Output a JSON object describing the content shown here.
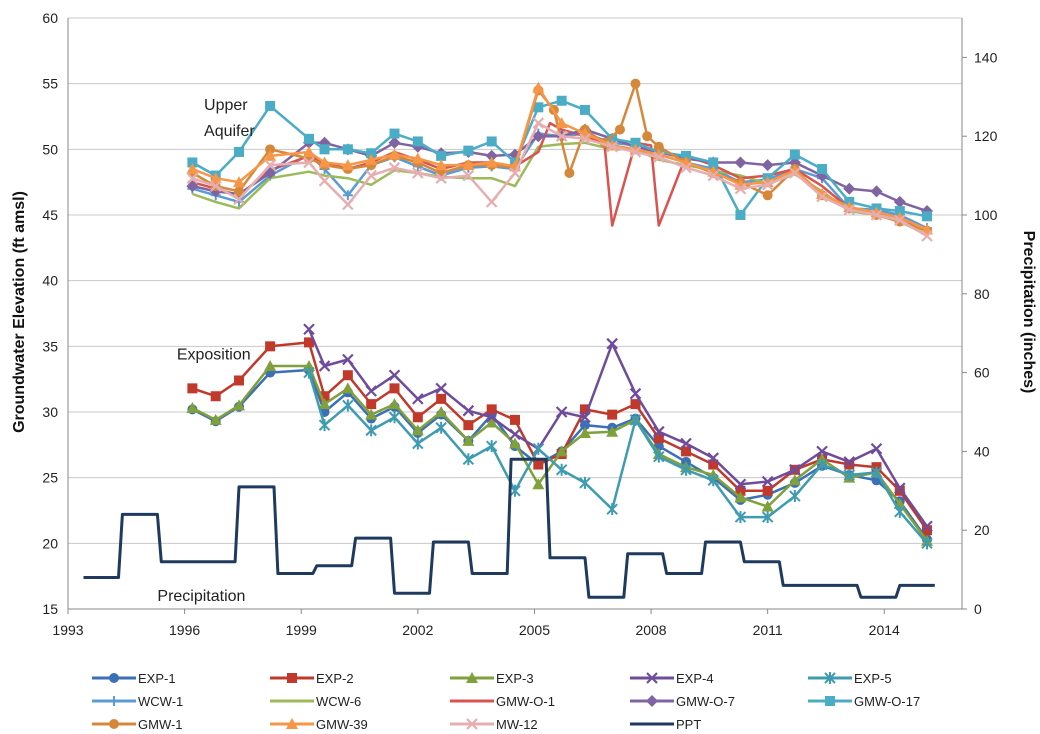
{
  "chart_data": {
    "type": "line",
    "xlabel": "",
    "ylabel": "Groundwater Elevation (ft amsl)",
    "y2label": "Precipitation (inches)",
    "xlim": [
      1993,
      2016
    ],
    "ylim": [
      15,
      60
    ],
    "y2lim": [
      0,
      150
    ],
    "x_ticks": [
      1993,
      1996,
      1999,
      2002,
      2005,
      2008,
      2011,
      2014
    ],
    "y_ticks": [
      15,
      20,
      25,
      30,
      35,
      40,
      45,
      50,
      55,
      60
    ],
    "y2_ticks": [
      0,
      20,
      40,
      60,
      80,
      100,
      120,
      140
    ],
    "grid": "horizontal",
    "legend_position": "bottom",
    "annotations": [
      {
        "text": "Upper",
        "x": 1996.5,
        "y": 53
      },
      {
        "text": "Aquifer",
        "x": 1996.5,
        "y": 51
      },
      {
        "text": "Exposition",
        "x": 1995.8,
        "y": 34
      },
      {
        "text": "Precipitation",
        "x": 1995.3,
        "y": 15.6
      }
    ],
    "series": [
      {
        "name": "EXP-1",
        "color": "#3B6FB6",
        "marker": "circle",
        "x": [
          1996.2,
          1996.8,
          1997.4,
          1998.2,
          1999.2,
          1999.6,
          2000.2,
          2000.8,
          2001.4,
          2002.0,
          2002.6,
          2003.3,
          2003.9,
          2004.5,
          2005.1,
          2005.7,
          2006.3,
          2007.0,
          2007.6,
          2008.2,
          2008.9,
          2009.6,
          2010.3,
          2011.0,
          2011.7,
          2012.4,
          2013.1,
          2013.8,
          2014.4,
          2015.1
        ],
        "y": [
          30.2,
          29.3,
          30.4,
          33.0,
          33.2,
          30.0,
          31.5,
          29.5,
          30.4,
          28.4,
          29.8,
          27.8,
          29.8,
          27.4,
          26.0,
          27.0,
          29.0,
          28.8,
          29.5,
          27.4,
          26.2,
          25.0,
          23.3,
          23.7,
          24.6,
          25.9,
          25.2,
          24.8,
          23.2,
          20.3
        ]
      },
      {
        "name": "EXP-2",
        "color": "#C0392B",
        "marker": "square",
        "x": [
          1996.2,
          1996.8,
          1997.4,
          1998.2,
          1999.2,
          1999.6,
          2000.2,
          2000.8,
          2001.4,
          2002.0,
          2002.6,
          2003.3,
          2003.9,
          2004.5,
          2005.1,
          2005.7,
          2006.3,
          2007.0,
          2007.6,
          2008.2,
          2008.9,
          2009.6,
          2010.3,
          2011.0,
          2011.7,
          2012.4,
          2013.1,
          2013.8,
          2014.4,
          2015.1
        ],
        "y": [
          31.8,
          31.2,
          32.4,
          35.0,
          35.3,
          31.2,
          32.8,
          30.6,
          31.8,
          29.6,
          31.0,
          29.0,
          30.2,
          29.4,
          26.0,
          26.8,
          30.2,
          29.8,
          30.6,
          28.0,
          27.0,
          26.0,
          24.0,
          24.0,
          25.6,
          26.4,
          26.0,
          25.8,
          24.0,
          21.0
        ]
      },
      {
        "name": "EXP-3",
        "color": "#7FA03A",
        "marker": "triangle",
        "x": [
          1996.2,
          1996.8,
          1997.4,
          1998.2,
          1999.2,
          1999.6,
          2000.2,
          2000.8,
          2001.4,
          2002.0,
          2002.6,
          2003.3,
          2003.9,
          2004.5,
          2005.1,
          2005.7,
          2006.3,
          2007.0,
          2007.6,
          2008.2,
          2008.9,
          2009.6,
          2010.3,
          2011.0,
          2011.7,
          2012.4,
          2013.1,
          2013.8,
          2014.4,
          2015.1
        ],
        "y": [
          30.3,
          29.4,
          30.5,
          33.5,
          33.5,
          30.6,
          31.8,
          29.8,
          30.6,
          28.6,
          30.0,
          27.8,
          29.2,
          27.6,
          24.5,
          27.0,
          28.4,
          28.5,
          29.4,
          26.8,
          25.8,
          25.2,
          23.5,
          22.8,
          24.8,
          26.4,
          25.0,
          25.4,
          23.0,
          20.2
        ]
      },
      {
        "name": "EXP-4",
        "color": "#6F4C9B",
        "marker": "x",
        "x": [
          1996.2,
          1996.8,
          1997.4,
          1998.2,
          1999.2,
          1999.6,
          2000.2,
          2000.8,
          2001.4,
          2002.0,
          2002.6,
          2003.3,
          2003.9,
          2004.5,
          2005.1,
          2005.7,
          2006.3,
          2007.0,
          2007.6,
          2008.2,
          2008.9,
          2009.6,
          2010.3,
          2011.0,
          2011.7,
          2012.4,
          2013.1,
          2013.8,
          2014.4,
          2015.1
        ],
        "y": [
          null,
          null,
          null,
          null,
          36.3,
          33.5,
          34.0,
          31.6,
          32.8,
          31.0,
          31.8,
          30.1,
          29.6,
          28.3,
          27.2,
          30.0,
          29.6,
          35.2,
          31.4,
          28.5,
          27.6,
          26.5,
          24.5,
          24.7,
          25.6,
          27.0,
          26.2,
          27.2,
          24.2,
          21.3
        ]
      },
      {
        "name": "EXP-5",
        "color": "#3E9BB0",
        "marker": "asterisk",
        "x": [
          1996.2,
          1996.8,
          1997.4,
          1998.2,
          1999.2,
          1999.6,
          2000.2,
          2000.8,
          2001.4,
          2002.0,
          2002.6,
          2003.3,
          2003.9,
          2004.5,
          2005.1,
          2005.7,
          2006.3,
          2007.0,
          2007.6,
          2008.2,
          2008.9,
          2009.6,
          2010.3,
          2011.0,
          2011.7,
          2012.4,
          2013.1,
          2013.8,
          2014.4,
          2015.1
        ],
        "y": [
          null,
          null,
          null,
          null,
          33.0,
          29.0,
          30.5,
          28.6,
          29.6,
          27.6,
          28.8,
          26.4,
          27.4,
          24.0,
          27.2,
          25.6,
          24.6,
          22.6,
          29.4,
          26.6,
          25.6,
          24.8,
          22.0,
          22.0,
          23.6,
          26.0,
          25.2,
          25.4,
          22.4,
          20.0
        ]
      },
      {
        "name": "WCW-1",
        "color": "#5B9BD5",
        "marker": "plus",
        "x": [
          1996.2,
          1996.8,
          1997.4,
          1998.2,
          1999.2,
          1999.6,
          2000.2,
          2000.8,
          2001.4,
          2002.0,
          2002.6,
          2003.3,
          2003.9,
          2004.5,
          2005.1,
          2005.7,
          2006.3,
          2007.0,
          2007.6,
          2008.2,
          2008.9,
          2009.6,
          2010.3,
          2011.0,
          2011.7,
          2012.4,
          2013.1,
          2013.8,
          2014.4,
          2015.1
        ],
        "y": [
          47.0,
          46.5,
          46.0,
          48.0,
          49.6,
          48.5,
          46.5,
          48.8,
          49.4,
          48.7,
          48.0,
          48.6,
          48.7,
          48.5,
          51.2,
          51.0,
          51.2,
          50.5,
          50.3,
          49.6,
          49.0,
          48.5,
          47.5,
          47.7,
          48.5,
          47.8,
          45.5,
          45.4,
          45.0,
          44.0
        ]
      },
      {
        "name": "WCW-6",
        "color": "#9BBB59",
        "marker": "none",
        "x": [
          1996.2,
          1996.8,
          1997.4,
          1998.2,
          1999.2,
          1999.6,
          2000.2,
          2000.8,
          2001.4,
          2002.0,
          2002.6,
          2003.3,
          2003.9,
          2004.5,
          2005.1,
          2005.7,
          2006.3,
          2007.0,
          2007.6,
          2008.2,
          2008.9,
          2009.6,
          2010.3,
          2011.0,
          2011.7,
          2012.4,
          2013.1,
          2013.8,
          2014.4,
          2015.1
        ],
        "y": [
          46.6,
          46.0,
          45.5,
          47.8,
          48.3,
          48.0,
          47.8,
          47.3,
          48.4,
          48.2,
          47.9,
          47.8,
          47.8,
          47.2,
          50.2,
          50.4,
          50.5,
          50.0,
          50.0,
          49.2,
          48.8,
          48.4,
          48.0,
          47.4,
          48.1,
          46.8,
          45.3,
          45.0,
          44.5,
          43.5
        ]
      },
      {
        "name": "GMW-O-1",
        "color": "#D9534F",
        "marker": "none",
        "x": [
          1996.2,
          1996.8,
          1997.4,
          1998.2,
          1999.2,
          1999.6,
          2000.2,
          2000.8,
          2001.4,
          2002.0,
          2002.6,
          2003.3,
          2003.9,
          2004.5,
          2005.1,
          2005.4,
          2005.7,
          2006.3,
          2006.8,
          2007.0,
          2007.6,
          2008.0,
          2008.2,
          2008.9,
          2009.6,
          2010.3,
          2011.0,
          2011.7,
          2012.4,
          2013.1,
          2013.8,
          2014.4,
          2015.1
        ],
        "y": [
          47.5,
          47.0,
          46.5,
          48.4,
          49.5,
          49.0,
          48.5,
          49.0,
          49.8,
          49.2,
          48.5,
          49.0,
          49.0,
          48.7,
          49.8,
          52.0,
          51.5,
          51.0,
          50.5,
          44.2,
          50.5,
          50.3,
          44.2,
          49.5,
          48.8,
          47.8,
          48.0,
          48.5,
          47.2,
          45.5,
          45.2,
          44.8,
          43.8
        ]
      },
      {
        "name": "GMW-O-7",
        "color": "#8064A2",
        "marker": "diamond",
        "x": [
          1996.2,
          1996.8,
          1997.4,
          1998.2,
          1999.2,
          1999.6,
          2000.2,
          2000.8,
          2001.4,
          2002.0,
          2002.6,
          2003.3,
          2003.9,
          2004.5,
          2005.1,
          2005.7,
          2006.3,
          2007.0,
          2007.6,
          2008.2,
          2008.9,
          2009.6,
          2010.3,
          2011.0,
          2011.7,
          2012.4,
          2013.1,
          2013.8,
          2014.4,
          2015.1
        ],
        "y": [
          47.2,
          46.8,
          46.6,
          48.2,
          50.5,
          50.5,
          50.0,
          49.5,
          50.5,
          50.2,
          49.7,
          49.8,
          49.5,
          49.6,
          51.0,
          51.0,
          51.5,
          50.8,
          50.2,
          49.8,
          49.3,
          49.0,
          49.0,
          48.8,
          49.0,
          48.0,
          47.0,
          46.8,
          46.0,
          45.3
        ]
      },
      {
        "name": "GMW-O-17",
        "color": "#4BACC6",
        "marker": "square",
        "x": [
          1996.2,
          1996.8,
          1997.4,
          1998.2,
          1999.2,
          1999.6,
          2000.2,
          2000.8,
          2001.4,
          2002.0,
          2002.6,
          2003.3,
          2003.9,
          2004.5,
          2005.1,
          2005.7,
          2006.3,
          2007.0,
          2007.6,
          2008.2,
          2008.9,
          2009.6,
          2010.3,
          2011.0,
          2011.7,
          2012.4,
          2013.1,
          2013.8,
          2014.4,
          2015.1
        ],
        "y": [
          49.0,
          48.0,
          49.8,
          53.3,
          50.8,
          50.0,
          50.0,
          49.7,
          51.2,
          50.6,
          49.5,
          49.9,
          50.6,
          49.0,
          53.2,
          53.7,
          53.0,
          50.8,
          50.5,
          49.8,
          49.5,
          49.0,
          45.0,
          47.8,
          49.6,
          48.5,
          46.0,
          45.5,
          45.3,
          44.9
        ]
      },
      {
        "name": "GMW-1",
        "color": "#D6883A",
        "marker": "circle",
        "x": [
          1996.2,
          1996.8,
          1997.4,
          1998.2,
          1999.2,
          1999.6,
          2000.2,
          2000.8,
          2001.4,
          2002.0,
          2002.6,
          2003.3,
          2003.9,
          2004.5,
          2005.1,
          2005.5,
          2005.9,
          2006.3,
          2006.8,
          2007.2,
          2007.6,
          2007.9,
          2008.2,
          2008.9,
          2009.6,
          2010.3,
          2011.0,
          2011.7,
          2012.4,
          2013.1,
          2013.8,
          2014.4,
          2015.1
        ],
        "y": [
          48.2,
          47.2,
          46.8,
          50.0,
          49.3,
          48.8,
          48.5,
          48.8,
          49.5,
          49.0,
          48.2,
          48.8,
          48.8,
          48.6,
          54.5,
          53.0,
          48.2,
          51.5,
          50.5,
          51.5,
          55.0,
          51.0,
          50.2,
          49.0,
          48.2,
          47.5,
          46.5,
          48.5,
          46.5,
          45.5,
          45.0,
          44.5,
          43.8
        ]
      },
      {
        "name": "GMW-39",
        "color": "#F79646",
        "marker": "triangle",
        "x": [
          1996.2,
          1996.8,
          1997.4,
          1998.2,
          1999.2,
          1999.6,
          2000.2,
          2000.8,
          2001.4,
          2002.0,
          2002.6,
          2003.3,
          2003.9,
          2004.5,
          2005.1,
          2005.7,
          2006.3,
          2007.0,
          2007.6,
          2008.2,
          2008.9,
          2009.6,
          2010.3,
          2011.0,
          2011.7,
          2012.4,
          2013.1,
          2013.8,
          2014.4,
          2015.1
        ],
        "y": [
          48.5,
          47.8,
          47.5,
          49.5,
          49.8,
          49.0,
          48.8,
          49.2,
          49.6,
          49.3,
          48.8,
          48.8,
          49.0,
          48.7,
          54.7,
          52.0,
          51.2,
          50.3,
          50.0,
          49.6,
          49.0,
          48.3,
          47.3,
          47.5,
          48.4,
          46.6,
          45.6,
          45.2,
          44.8,
          43.9
        ]
      },
      {
        "name": "MW-12",
        "color": "#E6AEB0",
        "marker": "x",
        "x": [
          1996.2,
          1996.8,
          1997.4,
          1998.2,
          1999.2,
          1999.6,
          2000.2,
          2000.8,
          2001.4,
          2002.0,
          2002.6,
          2003.3,
          2003.9,
          2004.5,
          2005.1,
          2005.7,
          2006.3,
          2007.0,
          2007.6,
          2008.2,
          2008.9,
          2009.6,
          2010.3,
          2011.0,
          2011.7,
          2012.4,
          2013.1,
          2013.8,
          2014.4,
          2015.1
        ],
        "y": [
          47.8,
          47.2,
          46.2,
          48.8,
          49.0,
          47.6,
          45.8,
          48.0,
          48.6,
          48.2,
          47.8,
          48.0,
          46.0,
          48.2,
          52.0,
          51.0,
          50.8,
          50.2,
          49.8,
          49.4,
          48.6,
          48.0,
          47.0,
          47.3,
          48.2,
          46.4,
          45.4,
          45.0,
          44.6,
          43.4
        ]
      },
      {
        "name": "PPT",
        "color": "#1F3A5F",
        "marker": "none",
        "axis": "y2",
        "step": true,
        "x": [
          1993.4,
          1994.3,
          1994.4,
          1995.3,
          1995.4,
          1997.3,
          1997.4,
          1998.3,
          1998.4,
          1999.3,
          1999.4,
          2000.3,
          2000.4,
          2001.3,
          2001.4,
          2002.3,
          2002.4,
          2003.3,
          2003.4,
          2004.3,
          2004.4,
          2005.3,
          2005.4,
          2006.3,
          2006.4,
          2007.3,
          2007.4,
          2008.3,
          2008.4,
          2009.3,
          2009.4,
          2010.3,
          2010.4,
          2011.3,
          2011.4,
          2013.3,
          2013.4,
          2014.3,
          2014.4,
          2015.3
        ],
        "y": [
          8,
          8,
          24,
          24,
          12,
          12,
          31,
          31,
          9,
          9,
          11,
          11,
          18,
          18,
          4,
          4,
          17,
          17,
          9,
          9,
          38,
          38,
          13,
          13,
          3,
          3,
          14,
          14,
          9,
          9,
          17,
          17,
          12,
          12,
          6,
          6,
          3,
          3,
          6,
          6
        ]
      }
    ]
  }
}
